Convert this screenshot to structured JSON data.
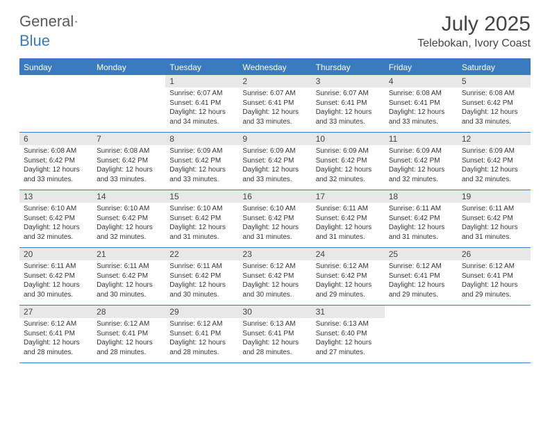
{
  "logo": {
    "word1": "General",
    "word2": "Blue"
  },
  "title": "July 2025",
  "location": "Telebokan, Ivory Coast",
  "colors": {
    "header_bg": "#3a7bbf",
    "header_text": "#ffffff",
    "daynum_bg": "#e8e8e8",
    "text": "#333333",
    "border": "#3a7bbf"
  },
  "typography": {
    "title_fontsize": 30,
    "location_fontsize": 16,
    "dayheader_fontsize": 12,
    "detail_fontsize": 10
  },
  "day_names": [
    "Sunday",
    "Monday",
    "Tuesday",
    "Wednesday",
    "Thursday",
    "Friday",
    "Saturday"
  ],
  "weeks": [
    [
      {
        "day": "",
        "sunrise": "",
        "sunset": "",
        "daylight": ""
      },
      {
        "day": "",
        "sunrise": "",
        "sunset": "",
        "daylight": ""
      },
      {
        "day": "1",
        "sunrise": "Sunrise: 6:07 AM",
        "sunset": "Sunset: 6:41 PM",
        "daylight": "Daylight: 12 hours and 34 minutes."
      },
      {
        "day": "2",
        "sunrise": "Sunrise: 6:07 AM",
        "sunset": "Sunset: 6:41 PM",
        "daylight": "Daylight: 12 hours and 33 minutes."
      },
      {
        "day": "3",
        "sunrise": "Sunrise: 6:07 AM",
        "sunset": "Sunset: 6:41 PM",
        "daylight": "Daylight: 12 hours and 33 minutes."
      },
      {
        "day": "4",
        "sunrise": "Sunrise: 6:08 AM",
        "sunset": "Sunset: 6:41 PM",
        "daylight": "Daylight: 12 hours and 33 minutes."
      },
      {
        "day": "5",
        "sunrise": "Sunrise: 6:08 AM",
        "sunset": "Sunset: 6:42 PM",
        "daylight": "Daylight: 12 hours and 33 minutes."
      }
    ],
    [
      {
        "day": "6",
        "sunrise": "Sunrise: 6:08 AM",
        "sunset": "Sunset: 6:42 PM",
        "daylight": "Daylight: 12 hours and 33 minutes."
      },
      {
        "day": "7",
        "sunrise": "Sunrise: 6:08 AM",
        "sunset": "Sunset: 6:42 PM",
        "daylight": "Daylight: 12 hours and 33 minutes."
      },
      {
        "day": "8",
        "sunrise": "Sunrise: 6:09 AM",
        "sunset": "Sunset: 6:42 PM",
        "daylight": "Daylight: 12 hours and 33 minutes."
      },
      {
        "day": "9",
        "sunrise": "Sunrise: 6:09 AM",
        "sunset": "Sunset: 6:42 PM",
        "daylight": "Daylight: 12 hours and 33 minutes."
      },
      {
        "day": "10",
        "sunrise": "Sunrise: 6:09 AM",
        "sunset": "Sunset: 6:42 PM",
        "daylight": "Daylight: 12 hours and 32 minutes."
      },
      {
        "day": "11",
        "sunrise": "Sunrise: 6:09 AM",
        "sunset": "Sunset: 6:42 PM",
        "daylight": "Daylight: 12 hours and 32 minutes."
      },
      {
        "day": "12",
        "sunrise": "Sunrise: 6:09 AM",
        "sunset": "Sunset: 6:42 PM",
        "daylight": "Daylight: 12 hours and 32 minutes."
      }
    ],
    [
      {
        "day": "13",
        "sunrise": "Sunrise: 6:10 AM",
        "sunset": "Sunset: 6:42 PM",
        "daylight": "Daylight: 12 hours and 32 minutes."
      },
      {
        "day": "14",
        "sunrise": "Sunrise: 6:10 AM",
        "sunset": "Sunset: 6:42 PM",
        "daylight": "Daylight: 12 hours and 32 minutes."
      },
      {
        "day": "15",
        "sunrise": "Sunrise: 6:10 AM",
        "sunset": "Sunset: 6:42 PM",
        "daylight": "Daylight: 12 hours and 31 minutes."
      },
      {
        "day": "16",
        "sunrise": "Sunrise: 6:10 AM",
        "sunset": "Sunset: 6:42 PM",
        "daylight": "Daylight: 12 hours and 31 minutes."
      },
      {
        "day": "17",
        "sunrise": "Sunrise: 6:11 AM",
        "sunset": "Sunset: 6:42 PM",
        "daylight": "Daylight: 12 hours and 31 minutes."
      },
      {
        "day": "18",
        "sunrise": "Sunrise: 6:11 AM",
        "sunset": "Sunset: 6:42 PM",
        "daylight": "Daylight: 12 hours and 31 minutes."
      },
      {
        "day": "19",
        "sunrise": "Sunrise: 6:11 AM",
        "sunset": "Sunset: 6:42 PM",
        "daylight": "Daylight: 12 hours and 31 minutes."
      }
    ],
    [
      {
        "day": "20",
        "sunrise": "Sunrise: 6:11 AM",
        "sunset": "Sunset: 6:42 PM",
        "daylight": "Daylight: 12 hours and 30 minutes."
      },
      {
        "day": "21",
        "sunrise": "Sunrise: 6:11 AM",
        "sunset": "Sunset: 6:42 PM",
        "daylight": "Daylight: 12 hours and 30 minutes."
      },
      {
        "day": "22",
        "sunrise": "Sunrise: 6:11 AM",
        "sunset": "Sunset: 6:42 PM",
        "daylight": "Daylight: 12 hours and 30 minutes."
      },
      {
        "day": "23",
        "sunrise": "Sunrise: 6:12 AM",
        "sunset": "Sunset: 6:42 PM",
        "daylight": "Daylight: 12 hours and 30 minutes."
      },
      {
        "day": "24",
        "sunrise": "Sunrise: 6:12 AM",
        "sunset": "Sunset: 6:42 PM",
        "daylight": "Daylight: 12 hours and 29 minutes."
      },
      {
        "day": "25",
        "sunrise": "Sunrise: 6:12 AM",
        "sunset": "Sunset: 6:41 PM",
        "daylight": "Daylight: 12 hours and 29 minutes."
      },
      {
        "day": "26",
        "sunrise": "Sunrise: 6:12 AM",
        "sunset": "Sunset: 6:41 PM",
        "daylight": "Daylight: 12 hours and 29 minutes."
      }
    ],
    [
      {
        "day": "27",
        "sunrise": "Sunrise: 6:12 AM",
        "sunset": "Sunset: 6:41 PM",
        "daylight": "Daylight: 12 hours and 28 minutes."
      },
      {
        "day": "28",
        "sunrise": "Sunrise: 6:12 AM",
        "sunset": "Sunset: 6:41 PM",
        "daylight": "Daylight: 12 hours and 28 minutes."
      },
      {
        "day": "29",
        "sunrise": "Sunrise: 6:12 AM",
        "sunset": "Sunset: 6:41 PM",
        "daylight": "Daylight: 12 hours and 28 minutes."
      },
      {
        "day": "30",
        "sunrise": "Sunrise: 6:13 AM",
        "sunset": "Sunset: 6:41 PM",
        "daylight": "Daylight: 12 hours and 28 minutes."
      },
      {
        "day": "31",
        "sunrise": "Sunrise: 6:13 AM",
        "sunset": "Sunset: 6:40 PM",
        "daylight": "Daylight: 12 hours and 27 minutes."
      },
      {
        "day": "",
        "sunrise": "",
        "sunset": "",
        "daylight": ""
      },
      {
        "day": "",
        "sunrise": "",
        "sunset": "",
        "daylight": ""
      }
    ]
  ]
}
